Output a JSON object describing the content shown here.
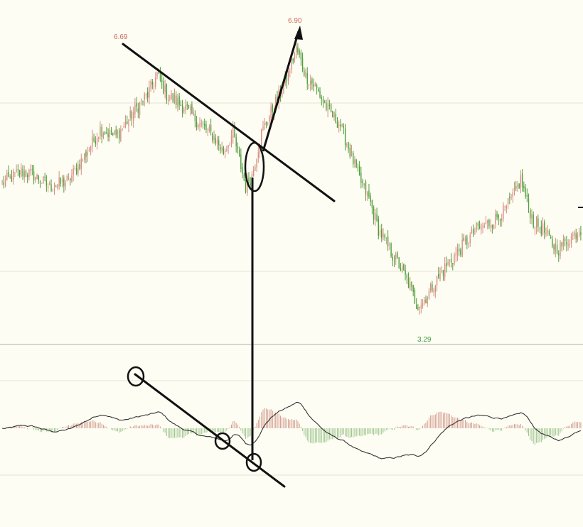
{
  "colors": {
    "background": "#fdfdf3",
    "up": "#d88e82",
    "down": "#4f9e3b",
    "hist_pos": "#d49b8f",
    "hist_neg": "#9cc48c",
    "signal_line": "#333333",
    "grid": "#e3e3d3",
    "panel_divider": "#c9c9c9",
    "annotation": "#111111",
    "label_high": "#cc6b5e",
    "label_low": "#3f9a3c"
  },
  "chart_data": [
    {
      "type": "candlestick",
      "title": "",
      "xlabel": "",
      "ylabel": "",
      "ylim": [
        2.9,
        7.05
      ],
      "anchors_close": [
        [
          0,
          4.95
        ],
        [
          12,
          5.1
        ],
        [
          20,
          5.05
        ],
        [
          30,
          4.9
        ],
        [
          42,
          4.98
        ],
        [
          52,
          5.3
        ],
        [
          62,
          5.65
        ],
        [
          72,
          5.55
        ],
        [
          86,
          5.95
        ],
        [
          92,
          6.1
        ],
        [
          98,
          6.35
        ],
        [
          104,
          6.1
        ],
        [
          116,
          5.92
        ],
        [
          126,
          5.7
        ],
        [
          134,
          5.55
        ],
        [
          140,
          5.35
        ],
        [
          146,
          5.6
        ],
        [
          150,
          5.25
        ],
        [
          154,
          4.9
        ],
        [
          158,
          5.05
        ],
        [
          164,
          5.6
        ],
        [
          172,
          5.95
        ],
        [
          180,
          6.3
        ],
        [
          186,
          6.7
        ],
        [
          192,
          6.35
        ],
        [
          198,
          6.2
        ],
        [
          206,
          5.9
        ],
        [
          214,
          5.7
        ],
        [
          220,
          5.35
        ],
        [
          226,
          5.0
        ],
        [
          232,
          4.75
        ],
        [
          238,
          4.35
        ],
        [
          246,
          4.05
        ],
        [
          252,
          3.85
        ],
        [
          258,
          3.6
        ],
        [
          262,
          3.38
        ],
        [
          266,
          3.4
        ],
        [
          272,
          3.6
        ],
        [
          280,
          3.85
        ],
        [
          290,
          4.1
        ],
        [
          300,
          4.35
        ],
        [
          310,
          4.45
        ],
        [
          318,
          4.6
        ],
        [
          324,
          4.8
        ],
        [
          328,
          5.0
        ],
        [
          332,
          4.7
        ],
        [
          336,
          4.45
        ],
        [
          342,
          4.35
        ],
        [
          348,
          4.15
        ],
        [
          352,
          4.1
        ],
        [
          360,
          4.25
        ],
        [
          366,
          4.35
        ]
      ],
      "high_label": "6.90",
      "left_high_label": "6.69",
      "low_label": "3.29"
    },
    {
      "type": "macd",
      "title": "",
      "series": [
        {
          "name": "",
          "kind": "histogram"
        },
        {
          "name": "",
          "kind": "line"
        }
      ]
    }
  ]
}
